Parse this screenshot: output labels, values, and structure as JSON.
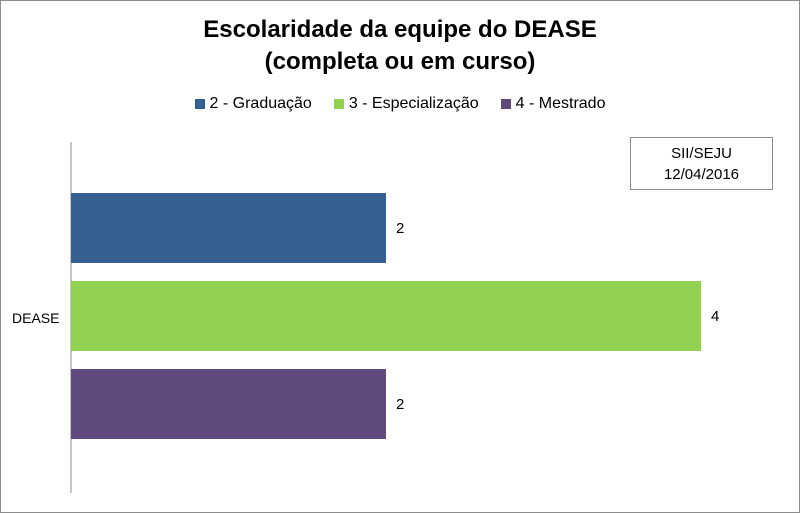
{
  "chart_data": {
    "type": "bar",
    "orientation": "horizontal",
    "title": [
      "Escolaridade da equipe do DEASE",
      "(completa ou em curso)"
    ],
    "categories": [
      "DEASE"
    ],
    "series": [
      {
        "name": "2 - Graduação",
        "values": [
          2
        ],
        "color": "#376092"
      },
      {
        "name": "3 - Especialização",
        "values": [
          4
        ],
        "color": "#92d050"
      },
      {
        "name": "4 - Mestrado",
        "values": [
          2
        ],
        "color": "#604a7b"
      }
    ],
    "xlim": [
      0,
      4.2
    ],
    "legend_position": "top",
    "grid": false,
    "data_labels": true
  },
  "note": {
    "line1": "SII/SEJU",
    "line2": "12/04/2016"
  }
}
